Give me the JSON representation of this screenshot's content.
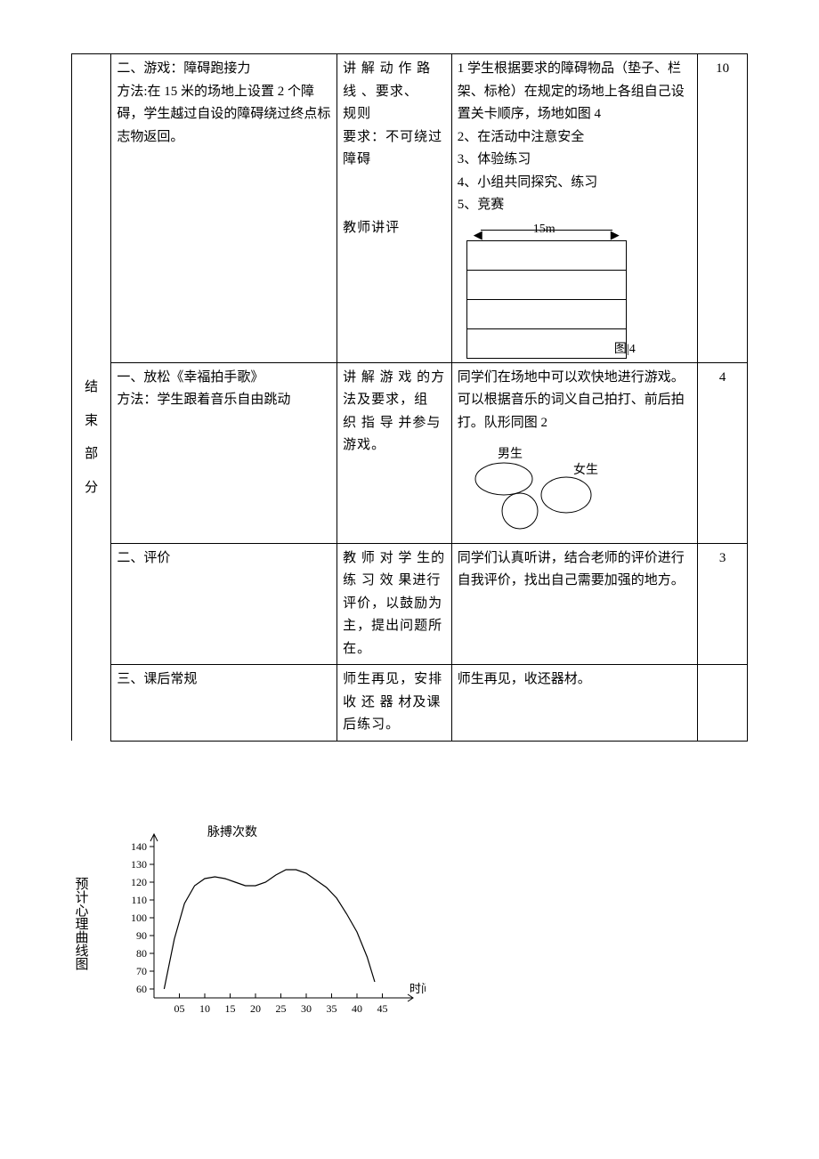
{
  "rows": {
    "r1": {
      "content": "二、游戏：障碍跑接力\n方法:在 15 米的场地上设置 2 个障碍，学生越过自设的障碍绕过终点标志物返回。",
      "teacher": "讲 解 动 作 路\n线 、要求、\n规则\n要求：不可绕过障碍\n\n\n教师讲评",
      "student": "1 学生根据要求的障碍物品（垫子、栏架、标枪）在规定的场地上各组自己设置关卡顺序，场地如图 4\n2、在活动中注意安全\n3、体验练习\n4、小组共同探究、练习\n5、竞赛",
      "time": "10",
      "fig4_dist": "15m",
      "fig4_caption": "图|4"
    },
    "r2": {
      "content": "一、放松《幸福拍手歌》\n方法：学生跟着音乐自由跳动",
      "teacher": "讲 解 游 戏 的方法及要求，组 织 指 导 并参与游戏。",
      "student": "同学们在场地中可以欢快地进行游戏。可以根据音乐的词义自己拍打、前后拍打。队形同图 2",
      "time": "4",
      "boy": "男生",
      "girl": "女生"
    },
    "r3": {
      "content": "二、评价",
      "teacher": "教 师 对 学 生的 练 习 效 果进行评价，以鼓励为主，提出问题所在。",
      "student": "同学们认真听讲，结合老师的评价进行自我评价，找出自己需要加强的地方。",
      "time": "3"
    },
    "r4": {
      "content": "三、课后常规",
      "teacher": "师生再见，安排 收 还 器 材及课后练习。",
      "student": "师生再见，收还器材。",
      "time": ""
    }
  },
  "section_label": [
    "结",
    "束",
    "部",
    "分"
  ],
  "chart": {
    "vert_label": "预计心理曲线图",
    "type": "line",
    "title": "脉搏次数",
    "xlabel": "时间",
    "xlim": [
      0,
      50
    ],
    "ylim": [
      55,
      145
    ],
    "xticks": [
      5,
      10,
      15,
      20,
      25,
      30,
      35,
      40,
      45
    ],
    "xtick_labels": [
      "05",
      "10",
      "15",
      "20",
      "25",
      "30",
      "35",
      "40",
      "45"
    ],
    "yticks": [
      60,
      70,
      80,
      90,
      100,
      110,
      120,
      130,
      140
    ],
    "ytick_labels": [
      "60",
      "70",
      "80",
      "90",
      "100",
      "110",
      "120",
      "130",
      "140"
    ],
    "curve": [
      [
        2,
        60
      ],
      [
        4,
        88
      ],
      [
        6,
        108
      ],
      [
        8,
        118
      ],
      [
        10,
        122
      ],
      [
        12,
        123
      ],
      [
        14,
        122
      ],
      [
        16,
        120
      ],
      [
        18,
        118
      ],
      [
        20,
        118
      ],
      [
        22,
        120
      ],
      [
        24,
        124
      ],
      [
        26,
        127
      ],
      [
        28,
        127
      ],
      [
        30,
        125
      ],
      [
        32,
        121
      ],
      [
        34,
        117
      ],
      [
        36,
        111
      ],
      [
        38,
        102
      ],
      [
        40,
        92
      ],
      [
        42,
        78
      ],
      [
        43.5,
        64
      ]
    ],
    "axis_color": "#000000",
    "line_color": "#000000",
    "background": "#ffffff",
    "line_width": 1.2,
    "font_size": 12
  }
}
